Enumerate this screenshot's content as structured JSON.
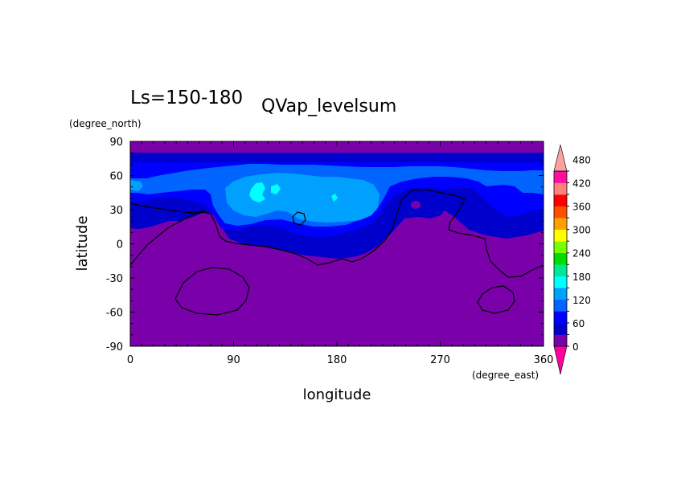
{
  "chart_data": {
    "type": "heatmap",
    "title_left": "Ls=150-180",
    "title_right": "QVap_levelsum",
    "xlabel": "longitude",
    "ylabel": "latitude",
    "x_units": "(degree_east)",
    "y_units": "(degree_north)",
    "xlim": [
      0,
      360
    ],
    "ylim": [
      -90,
      90
    ],
    "x_ticks": [
      0,
      90,
      180,
      270,
      360
    ],
    "y_ticks": [
      90,
      60,
      30,
      0,
      -30,
      -60,
      -90
    ],
    "colorbar": {
      "levels": [
        0,
        60,
        120,
        180,
        240,
        300,
        360,
        420,
        480
      ],
      "colors": [
        "#7a00aa",
        "#0000cc",
        "#0000ff",
        "#0064ff",
        "#00a0ff",
        "#00ffff",
        "#00e896",
        "#00dc00",
        "#78ff00",
        "#ffff00",
        "#ffa000",
        "#ff5000",
        "#ff0000",
        "#ff8080",
        "#ff0fa0"
      ],
      "under_color": "#ff00a0",
      "over_color": "#ffa0a0",
      "extend": "both"
    },
    "fill_colors": {
      "base": "#7a00aa",
      "level_30": "#0000cc",
      "level_60": "#0000ff",
      "level_90": "#0064ff",
      "level_120": "#00a0ff",
      "level_150": "#00ffff"
    },
    "contour_line_color": "#000000",
    "grid": false
  }
}
